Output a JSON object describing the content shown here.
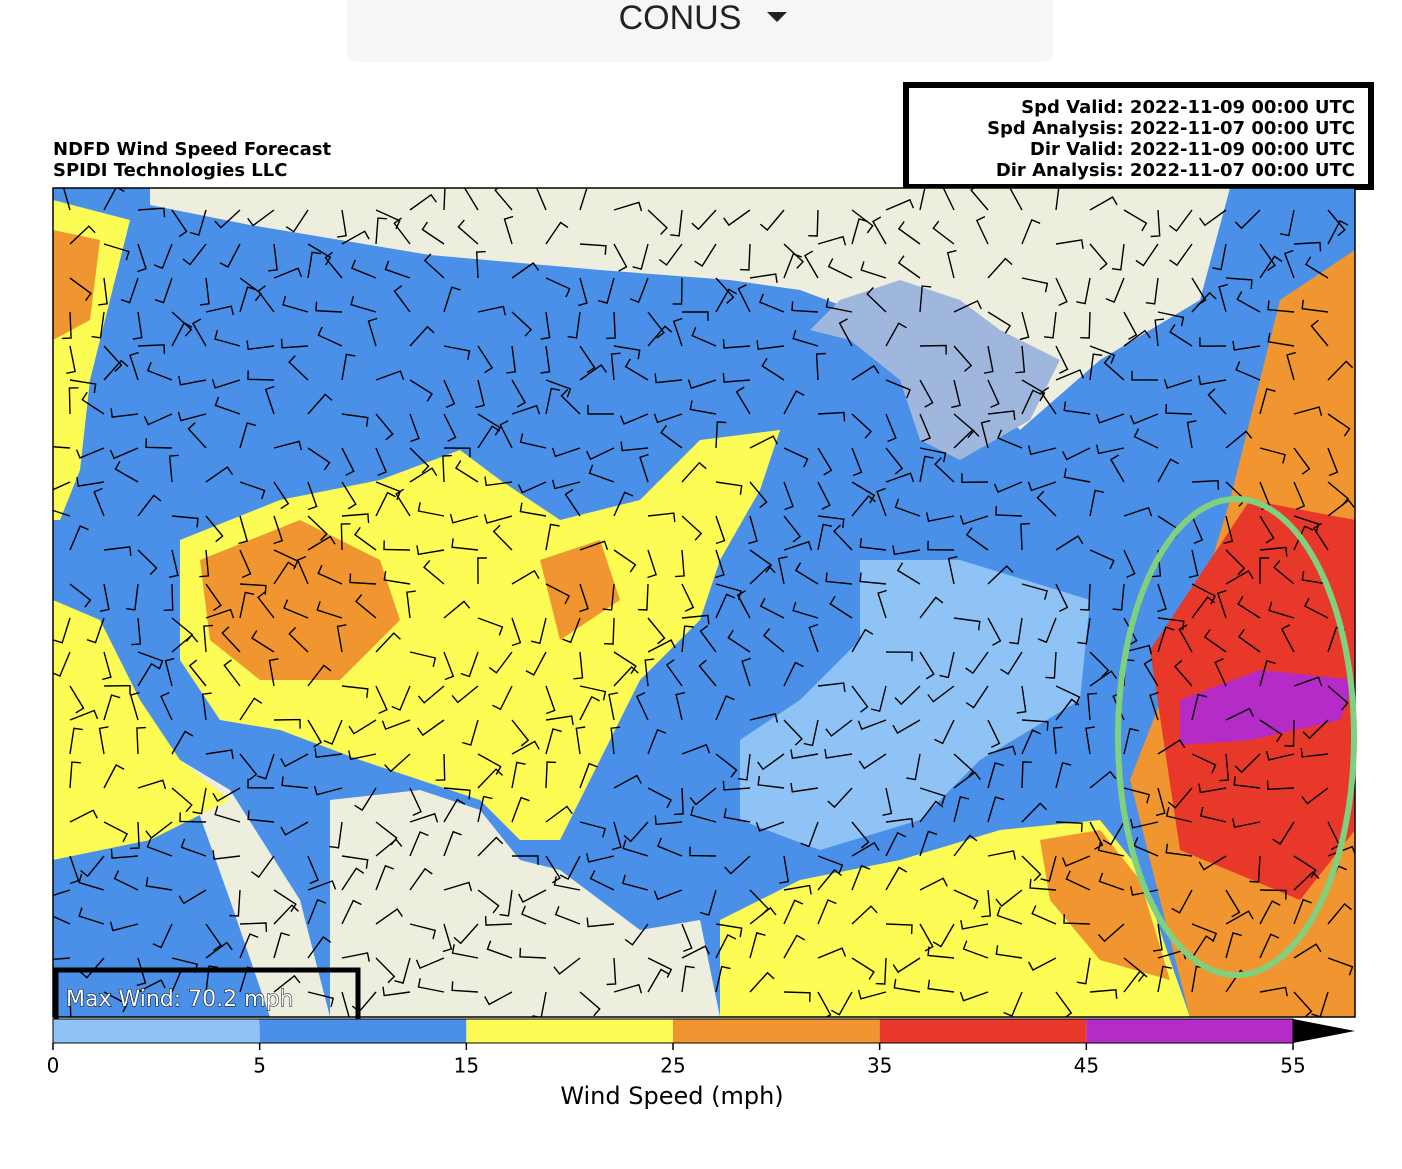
{
  "dropdown": {
    "label": "CONUS"
  },
  "map": {
    "title_lines": [
      "NDFD Wind Speed Forecast",
      "SPIDI Technologies LLC"
    ],
    "info_lines": [
      "Spd Valid: 2022-11-09 00:00 UTC",
      "Spd Analysis: 2022-11-07 00:00 UTC",
      "Dir Valid: 2022-11-09 00:00 UTC",
      "Dir Analysis: 2022-11-07 00:00 UTC"
    ],
    "max_wind": "Max Wind: 70.2 mph"
  },
  "colorbar": {
    "label": "Wind Speed (mph)",
    "ticks": [
      0,
      5,
      15,
      25,
      35,
      45,
      55
    ],
    "colors": [
      "#8fc3f5",
      "#4a8fe8",
      "#fcfc55",
      "#f0952f",
      "#e8382a",
      "#b52bc8"
    ]
  }
}
